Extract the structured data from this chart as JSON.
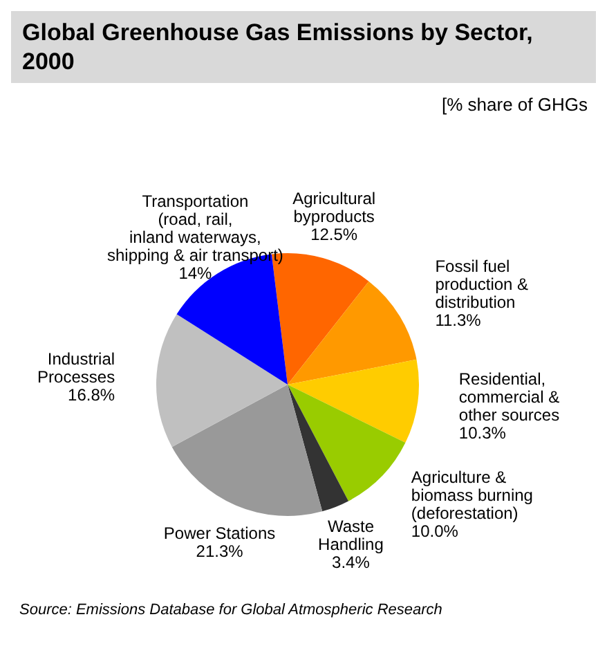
{
  "chart_data": {
    "type": "pie",
    "title": "Global Greenhouse Gas Emissions by Sector, 2000",
    "subtitle": "[% share of GHGs",
    "annotations": [
      "Source: Emissions Database for Global Atmospheric Research"
    ],
    "categories": [
      "Agricultural\nbyproducts",
      "Fossil fuel\nproduction &\ndistribution",
      "Residential,\ncommercial &\nother sources",
      "Agriculture &\nbiomass burning\n(deforestation)",
      "Waste\nHandling",
      "Power Stations",
      "Industrial\nProcesses",
      "Transportation\n(road, rail,\ninland waterways,\nshipping & air transport)"
    ],
    "values": [
      12.5,
      11.3,
      10.3,
      10.0,
      3.4,
      21.3,
      16.8,
      14
    ],
    "colors": [
      "#ff6600",
      "#ff9900",
      "#ffcc00",
      "#99cc00",
      "#333333",
      "#999999",
      "#c0c0c0",
      "#0000ff"
    ],
    "value_labels": [
      "12.5%",
      "11.3%",
      "10.3%",
      "10.0%",
      "3.4%",
      "21.3%",
      "16.8%",
      "14%"
    ],
    "legend": false
  }
}
